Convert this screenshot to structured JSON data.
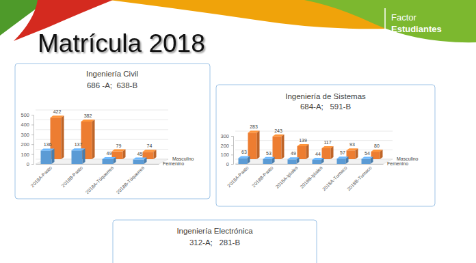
{
  "header": {
    "title": "Matrícula 2018",
    "logo": [
      "Factor",
      "Estudiantes"
    ]
  },
  "chart_data": [
    {
      "type": "bar",
      "title": "Ingeniería Civil",
      "subtitle": "686 -A;  638-B",
      "categories": [
        "2018A-Pasto",
        "2018B-Pasto",
        "2018A-Túquerres",
        "2018B-Túquerres"
      ],
      "series": [
        {
          "name": "Femenino",
          "color": "#5b9bd5",
          "values": [
            136,
            137,
            49,
            45
          ]
        },
        {
          "name": "Masculino",
          "color": "#ed7d31",
          "values": [
            422,
            382,
            79,
            74
          ]
        }
      ],
      "ylim": [
        0,
        500
      ],
      "yticks": [
        0,
        100,
        200,
        300,
        400,
        500
      ],
      "grid": true,
      "data_labels": true,
      "legend": "right"
    },
    {
      "type": "bar",
      "title": "Ingeniería de Sistemas",
      "subtitle": "684-A;   591-B",
      "categories": [
        "2018A-Pasto",
        "2018B-Pasto",
        "2018A-Ipiales",
        "2018B-Ipiales",
        "2018A-Tumaco",
        "2018B-Tumaco"
      ],
      "series": [
        {
          "name": "Femenino",
          "color": "#5b9bd5",
          "values": [
            63,
            53,
            49,
            44,
            57,
            54
          ]
        },
        {
          "name": "Masculino",
          "color": "#ed7d31",
          "values": [
            283,
            243,
            139,
            117,
            93,
            80
          ]
        }
      ],
      "ylim": [
        0,
        300
      ],
      "yticks": [
        0,
        100,
        200,
        300
      ],
      "grid": true,
      "data_labels": true,
      "legend": "right"
    },
    {
      "type": "bar",
      "title": "Ingeniería Electrónica",
      "subtitle": "312-A;   281-B"
    }
  ]
}
